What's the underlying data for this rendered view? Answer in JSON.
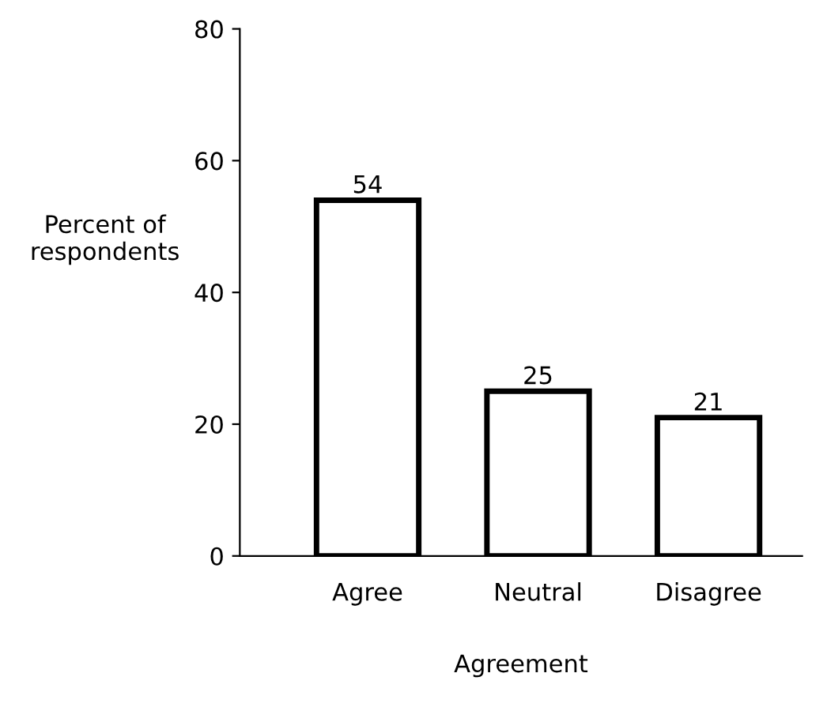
{
  "chart_data": {
    "type": "bar",
    "xlabel": "Agreement",
    "ylabel": "Percent of\nrespondents",
    "categories": [
      "Agree",
      "Neutral",
      "Disagree"
    ],
    "values": [
      54,
      25,
      21
    ],
    "color": "#ffffff",
    "ylim": [
      0,
      80
    ],
    "yticks": [
      0,
      20,
      40,
      60,
      80
    ],
    "data_labels": true,
    "grid": false,
    "legend": false
  }
}
